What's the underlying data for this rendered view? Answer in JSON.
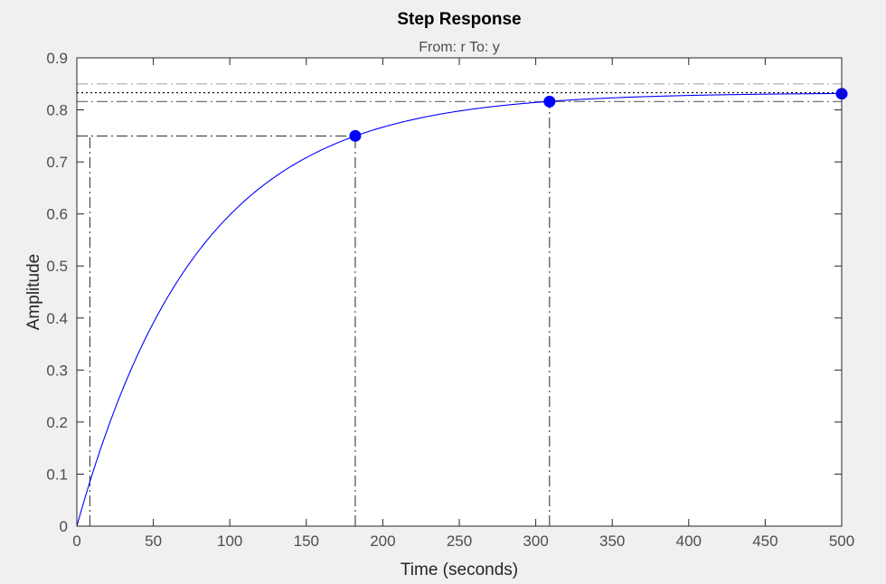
{
  "chart_data": {
    "type": "line",
    "title": "Step Response",
    "subtitle": "From: r  To: y",
    "xlabel": "Time (seconds)",
    "ylabel": "Amplitude",
    "xlim": [
      0,
      500
    ],
    "ylim": [
      0,
      0.9
    ],
    "xticks": [
      0,
      50,
      100,
      150,
      200,
      250,
      300,
      350,
      400,
      450,
      500
    ],
    "yticks": [
      0,
      0.1,
      0.2,
      0.3,
      0.4,
      0.5,
      0.6,
      0.7,
      0.8,
      0.9
    ],
    "grid": false,
    "series": [
      {
        "color": "#0000ff",
        "model": {
          "type": "first-order-step",
          "final_value": 0.833,
          "time_constant": 79
        },
        "x_range": [
          0,
          500
        ]
      }
    ],
    "characteristic_points": [
      {
        "x": 182,
        "y": 0.75
      },
      {
        "x": 309,
        "y": 0.816
      },
      {
        "x": 500,
        "y": 0.831
      }
    ],
    "rise_time_start_x": 8.5,
    "reference_lines": [
      {
        "y": 0.85,
        "style": "dash-dot",
        "color": "#b3b3b3"
      },
      {
        "y": 0.833,
        "style": "dotted",
        "color": "#000000"
      },
      {
        "y": 0.816,
        "style": "dash-dot",
        "color": "#737373"
      }
    ]
  }
}
